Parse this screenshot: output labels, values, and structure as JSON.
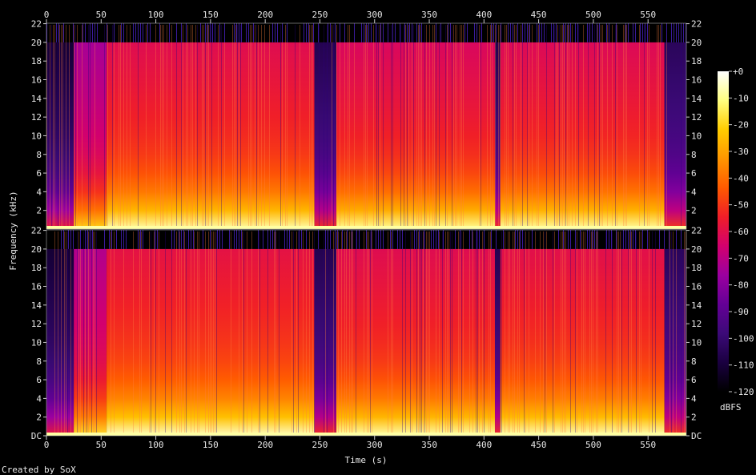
{
  "chart_data": {
    "type": "heatmap",
    "subtype": "spectrogram",
    "title": "",
    "xlabel": "Time (s)",
    "ylabel": "Frequency (kHz)",
    "footer": "Created by SoX",
    "colorbar_label": "dBFS",
    "xlim": [
      0,
      585
    ],
    "x_ticks": [
      0,
      50,
      100,
      150,
      200,
      250,
      300,
      350,
      400,
      450,
      500,
      550
    ],
    "x_tick_labels": [
      "0",
      "50",
      "100",
      "150",
      "200",
      "250",
      "300",
      "350",
      "400",
      "450",
      "500",
      "550"
    ],
    "ylim_khz": [
      0,
      22.05
    ],
    "y_ticks": [
      0,
      2,
      4,
      6,
      8,
      10,
      12,
      14,
      16,
      18,
      20,
      22
    ],
    "y_tick_labels_top": [
      "",
      "2",
      "4",
      "6",
      "8",
      "10",
      "12",
      "14",
      "16",
      "18",
      "20",
      "22"
    ],
    "y_tick_labels_bottom": [
      "DC",
      "2",
      "4",
      "6",
      "8",
      "10",
      "12",
      "14",
      "16",
      "18",
      "20",
      "22"
    ],
    "cutoff_khz": 20,
    "colorbar_range_db": [
      -120,
      0
    ],
    "colorbar_ticks": [
      0,
      -10,
      -20,
      -30,
      -40,
      -50,
      -60,
      -70,
      -80,
      -90,
      -100,
      -110,
      -120
    ],
    "colorbar_tick_labels": [
      "+0",
      "-10",
      "-20",
      "-30",
      "-40",
      "-50",
      "-60",
      "-70",
      "-80",
      "-90",
      "-100",
      "-110",
      "-120"
    ],
    "colormap": [
      "#000000",
      "#1a0040",
      "#3c0a78",
      "#640096",
      "#9b00a0",
      "#d2006e",
      "#f01e28",
      "#ff5a00",
      "#ff9600",
      "#ffcd00",
      "#ffff80",
      "#ffffff"
    ],
    "channels": [
      {
        "name": "channel-1",
        "segments_db": [
          {
            "t": [
              0,
              25
            ],
            "level_db": -105
          },
          {
            "t": [
              25,
              55
            ],
            "level_db": -68
          },
          {
            "t": [
              55,
              245
            ],
            "level_db": -55
          },
          {
            "t": [
              245,
              265
            ],
            "level_db": -100
          },
          {
            "t": [
              265,
              410
            ],
            "level_db": -57
          },
          {
            "t": [
              410,
              415
            ],
            "level_db": -100
          },
          {
            "t": [
              415,
              565
            ],
            "level_db": -56
          },
          {
            "t": [
              565,
              585
            ],
            "level_db": -98
          }
        ]
      },
      {
        "name": "channel-2",
        "segments_db": [
          {
            "t": [
              0,
              25
            ],
            "level_db": -105
          },
          {
            "t": [
              25,
              55
            ],
            "level_db": -66
          },
          {
            "t": [
              55,
              245
            ],
            "level_db": -53
          },
          {
            "t": [
              245,
              265
            ],
            "level_db": -100
          },
          {
            "t": [
              265,
              410
            ],
            "level_db": -55
          },
          {
            "t": [
              410,
              415
            ],
            "level_db": -100
          },
          {
            "t": [
              415,
              565
            ],
            "level_db": -54
          },
          {
            "t": [
              565,
              585
            ],
            "level_db": -98
          }
        ]
      }
    ]
  }
}
